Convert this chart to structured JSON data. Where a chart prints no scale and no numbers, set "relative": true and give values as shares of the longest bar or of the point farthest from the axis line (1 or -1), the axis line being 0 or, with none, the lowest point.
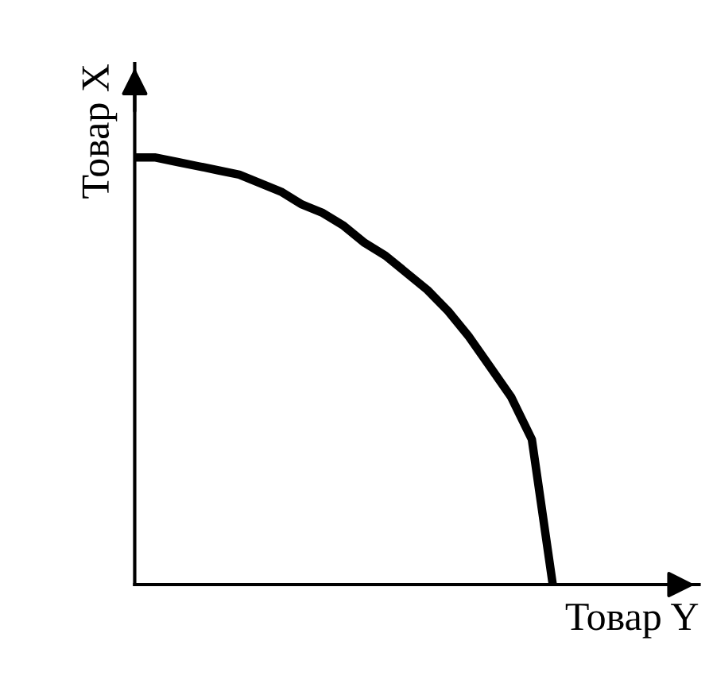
{
  "chart_data": {
    "type": "line",
    "relative": true,
    "xlabel": "Товар Y",
    "ylabel": "Товар X",
    "categories": [
      null,
      null,
      null,
      null,
      null,
      null,
      null,
      null,
      null,
      null,
      null,
      null,
      null,
      null,
      null,
      null,
      null,
      null,
      null,
      null,
      null,
      null,
      null,
      null,
      null,
      null,
      null,
      null
    ],
    "series": [
      {
        "color": "#000000",
        "values": [
          1.0,
          1.0,
          0.99,
          0.98,
          0.97,
          0.96,
          0.94,
          0.92,
          0.89,
          0.87,
          0.84,
          0.8,
          0.77,
          0.73,
          0.69,
          0.64,
          0.58,
          0.51,
          0.44,
          0.34,
          0.0,
          null,
          null,
          null,
          null,
          null,
          null,
          null
        ]
      }
    ],
    "marker": "none",
    "line_style": "solid"
  }
}
